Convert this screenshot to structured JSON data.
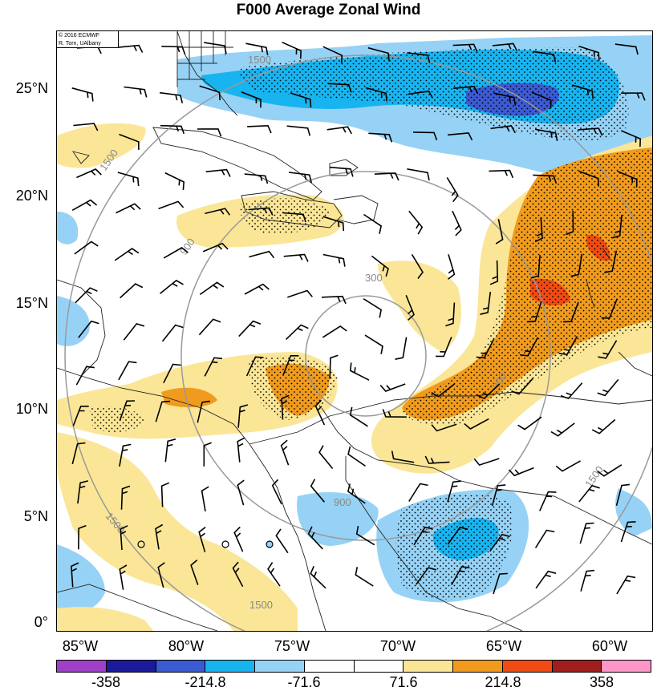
{
  "title": "F000 Average Zonal Wind",
  "credit": [
    "© 2016 ECMWF",
    "R. Torn, UAlbany"
  ],
  "lat_labels": [
    "25°N",
    "20°N",
    "15°N",
    "10°N",
    "5°N",
    "0°"
  ],
  "lon_labels": [
    "85°W",
    "80°W",
    "75°W",
    "70°W",
    "65°W",
    "60°W"
  ],
  "range_ring_labels": [
    "300",
    "900",
    "1500"
  ],
  "colorbar": {
    "colors": [
      "#a040c8",
      "#1a1a9a",
      "#3c5ad2",
      "#18b4f0",
      "#96d2f5",
      "#ffffff",
      "#ffffff",
      "#fae696",
      "#f09b1e",
      "#f04b14",
      "#a01e1e",
      "#ff96c8"
    ],
    "labels": [
      "-358",
      "-214.8",
      "-71.6",
      "71.6",
      "214.8",
      "358"
    ]
  }
}
